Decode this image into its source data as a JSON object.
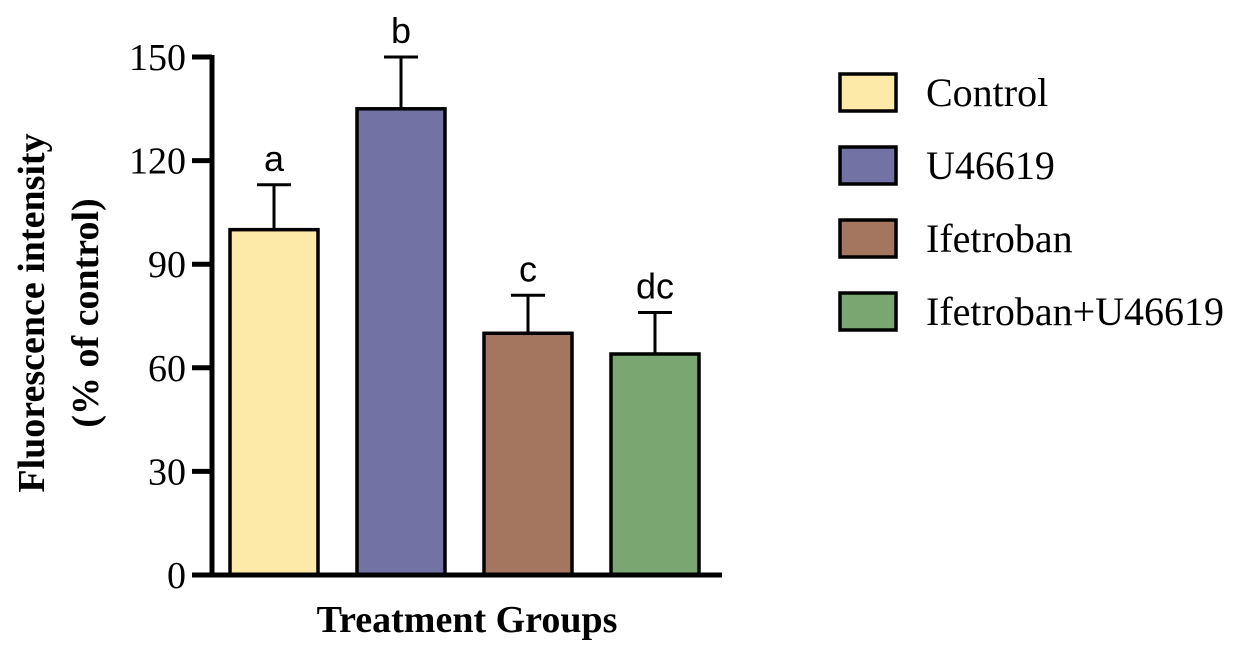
{
  "chart_data": {
    "type": "bar",
    "title": "",
    "xlabel": "Treatment Groups",
    "ylabel_line1": "Fluorescence intensity",
    "ylabel_line2": "(% of control)",
    "ylim": [
      0,
      150
    ],
    "yticks": [
      0,
      30,
      60,
      90,
      120,
      150
    ],
    "categories": [
      "Control",
      "U46619",
      "Ifetroban",
      "Ifetroban+U46619"
    ],
    "values": [
      100,
      135,
      70,
      64
    ],
    "errors": [
      13,
      15,
      11,
      12
    ],
    "significance": [
      "a",
      "b",
      "c",
      "dc"
    ],
    "colors": [
      "#fdeaa8",
      "#7272a4",
      "#a5765f",
      "#7aa672"
    ],
    "grid": false,
    "legend_position": "right",
    "legend": [
      "Control",
      "U46619",
      "Ifetroban",
      "Ifetroban+U46619"
    ]
  }
}
